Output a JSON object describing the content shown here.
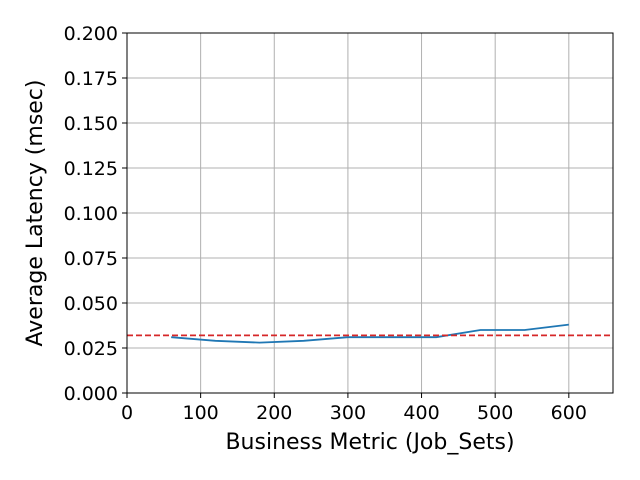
{
  "chart_data": {
    "type": "line",
    "x_label": "Business Metric (Job_Sets)",
    "y_label": "Average Latency (msec)",
    "x": [
      60,
      120,
      180,
      240,
      300,
      360,
      420,
      480,
      540,
      600
    ],
    "values": [
      0.031,
      0.029,
      0.028,
      0.029,
      0.031,
      0.031,
      0.031,
      0.035,
      0.035,
      0.038
    ],
    "color": "#1f77b4",
    "xlim": [
      0,
      660
    ],
    "xticks": [
      0,
      100,
      200,
      300,
      400,
      500,
      600
    ],
    "ylim": [
      0,
      0.2
    ],
    "yticks": [
      {
        "value": 0,
        "label": "0.000"
      },
      {
        "value": 0.025,
        "label": "0.025"
      },
      {
        "value": 0.05,
        "label": "0.050"
      },
      {
        "value": 0.075,
        "label": "0.075"
      },
      {
        "value": 0.1,
        "label": "0.100"
      },
      {
        "value": 0.125,
        "label": "0.125"
      },
      {
        "value": 0.15,
        "label": "0.150"
      },
      {
        "value": 0.175,
        "label": "0.175"
      },
      {
        "value": 0.2,
        "label": "0.200"
      }
    ],
    "grid": true,
    "hline": {
      "value": 0.032,
      "color": "#d62728",
      "style": "dashed"
    }
  }
}
